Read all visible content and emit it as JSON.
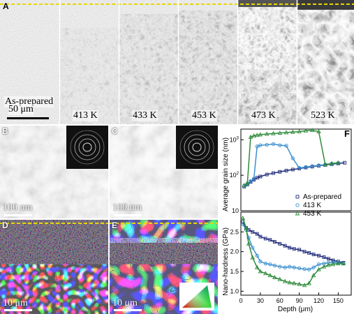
{
  "panels": {
    "A": "A",
    "B": "B",
    "C": "C",
    "D": "D",
    "E": "E",
    "F": "F"
  },
  "panelA": {
    "strips": [
      "As-prepared",
      "413 K",
      "433 K",
      "453 K",
      "473 K",
      "523 K"
    ],
    "scale": "50 μm"
  },
  "panelB": {
    "scale": "100 nm"
  },
  "panelC": {
    "scale": "100 nm"
  },
  "panelD": {
    "scale": "10 μm"
  },
  "panelE": {
    "scale": "10 μm"
  },
  "chart_data": [
    {
      "type": "scatter",
      "ylabel": "Average grain size (nm)",
      "yscale": "log",
      "ylim": [
        10,
        2000
      ],
      "xlim": [
        0,
        170
      ],
      "yticks": [
        "10",
        "10^2",
        "10^3"
      ],
      "series": [
        {
          "name": "As-prepared",
          "color": "#1f2a7a",
          "marker": "square",
          "x": [
            5,
            10,
            15,
            20,
            25,
            30,
            40,
            50,
            60,
            70,
            80,
            90,
            100,
            110,
            120,
            130,
            140,
            150,
            160
          ],
          "y": [
            48,
            55,
            65,
            75,
            85,
            92,
            105,
            115,
            125,
            135,
            145,
            155,
            165,
            175,
            185,
            195,
            205,
            215,
            225
          ]
        },
        {
          "name": "413 K",
          "color": "#3a8fd0",
          "marker": "circle",
          "x": [
            5,
            10,
            15,
            20,
            25,
            30,
            40,
            50,
            60,
            70,
            80,
            90,
            100,
            110,
            120,
            130,
            140,
            150
          ],
          "y": [
            50,
            58,
            68,
            80,
            650,
            700,
            720,
            760,
            700,
            680,
            300,
            160,
            170,
            180,
            190,
            200,
            210,
            220
          ]
        },
        {
          "name": "453 K",
          "color": "#2e8b3a",
          "marker": "triangle",
          "x": [
            5,
            10,
            15,
            20,
            25,
            30,
            40,
            50,
            60,
            70,
            80,
            90,
            100,
            110,
            120,
            130,
            140,
            150
          ],
          "y": [
            52,
            60,
            1200,
            1300,
            1350,
            1400,
            1450,
            1500,
            1550,
            1600,
            1650,
            1700,
            1800,
            1850,
            1700,
            200,
            215,
            225
          ]
        }
      ]
    },
    {
      "type": "scatter",
      "xlabel": "Depth (μm)",
      "ylabel": "Nano-hardness (GPa)",
      "xlim": [
        0,
        170
      ],
      "ylim": [
        0.9,
        3.0
      ],
      "xticks": [
        0,
        30,
        60,
        90,
        120,
        150
      ],
      "yticks": [
        1.0,
        1.5,
        2.0,
        2.5
      ],
      "legend_position": "top-right",
      "series": [
        {
          "name": "As-prepared",
          "color": "#1f2a7a",
          "marker": "square",
          "x": [
            3,
            8,
            12,
            18,
            25,
            30,
            38,
            45,
            52,
            60,
            68,
            75,
            82,
            90,
            98,
            105,
            112,
            120,
            128,
            135,
            142,
            150,
            158
          ],
          "y": [
            2.75,
            2.6,
            2.55,
            2.5,
            2.45,
            2.38,
            2.33,
            2.3,
            2.25,
            2.2,
            2.15,
            2.1,
            2.07,
            2.05,
            2.0,
            1.97,
            1.93,
            1.9,
            1.86,
            1.82,
            1.78,
            1.75,
            1.72
          ]
        },
        {
          "name": "413 K",
          "color": "#3a8fd0",
          "marker": "circle",
          "x": [
            3,
            8,
            12,
            18,
            25,
            30,
            38,
            45,
            52,
            60,
            68,
            75,
            82,
            90,
            98,
            105,
            112,
            120,
            128,
            135,
            142,
            150,
            158
          ],
          "y": [
            2.7,
            2.55,
            2.35,
            2.1,
            1.9,
            1.75,
            1.7,
            1.68,
            1.65,
            1.62,
            1.6,
            1.62,
            1.6,
            1.58,
            1.56,
            1.55,
            1.6,
            1.68,
            1.7,
            1.72,
            1.73,
            1.72,
            1.7
          ]
        },
        {
          "name": "453 K",
          "color": "#2e8b3a",
          "marker": "triangle",
          "x": [
            3,
            8,
            12,
            18,
            25,
            30,
            38,
            45,
            52,
            60,
            68,
            75,
            82,
            90,
            98,
            105,
            112,
            120,
            128,
            135,
            142,
            150,
            158
          ],
          "y": [
            2.85,
            2.6,
            2.2,
            1.85,
            1.6,
            1.5,
            1.45,
            1.4,
            1.35,
            1.3,
            1.25,
            1.22,
            1.2,
            1.18,
            1.15,
            1.2,
            1.4,
            1.55,
            1.62,
            1.66,
            1.68,
            1.7,
            1.7
          ]
        }
      ]
    }
  ]
}
